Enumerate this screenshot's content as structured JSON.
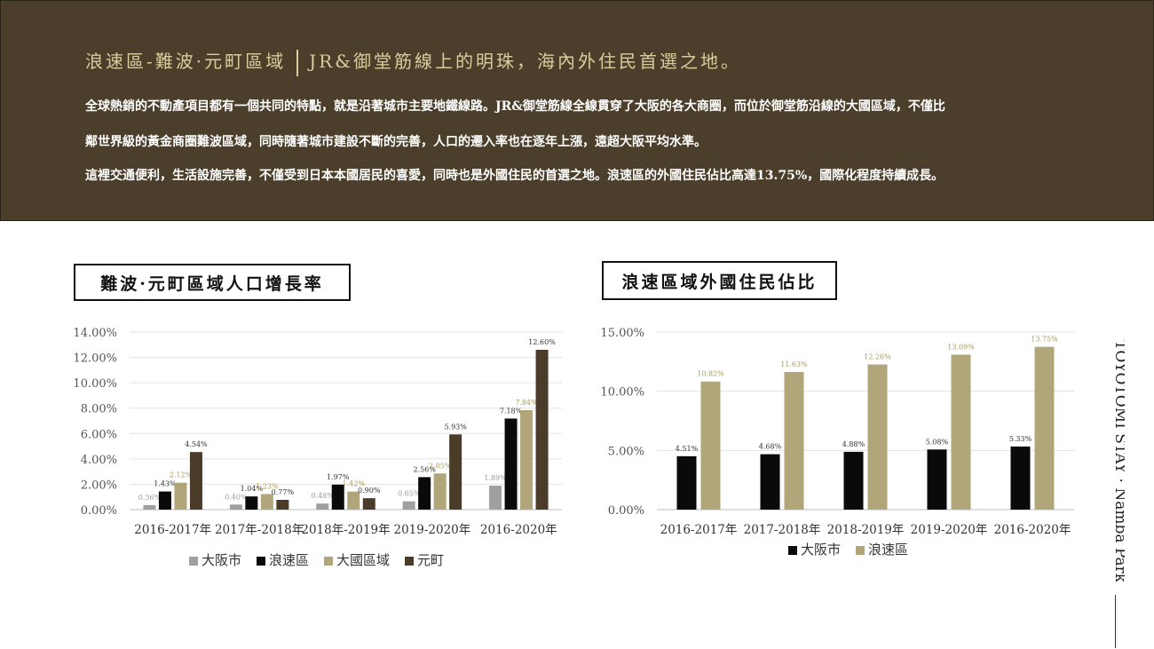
{
  "banner": {
    "heading_left": "浪速區-難波·元町區域",
    "heading_right": "JR&御堂筋線上的明珠，海內外住民首選之地。",
    "para1": "全球熱銷的不動產項目都有一個共同的特點，就是沿著城市主要地鐵線路。JR&御堂筋線全線貫穿了大阪的各大商圈，而位於御堂筋沿線的大國區域，不僅比",
    "para2": "鄰世界級的黃金商圈難波區域，同時隨著城市建設不斷的完善，人口的遷入率也在逐年上漲，遠超大阪平均水準。",
    "para3": "這裡交通便利，生活設施完善，不僅受到日本本國居民的喜愛，同時也是外國住民的首選之地。浪速區的外國住民佔比高達13.75%，國際化程度持續成長。"
  },
  "side_label": "TOYOTOMI STAY · Namba Park",
  "colors": {
    "banner_bg": "#4b3f2b",
    "gold": "#d9cc9c",
    "gray": "#a0a0a0",
    "black": "#0a0a0a",
    "khaki": "#b1a67a",
    "brown": "#4a3c28"
  },
  "chart_data": [
    {
      "type": "bar",
      "title": "難波·元町區域人口增長率",
      "categories": [
        "2016-2017年",
        "2017年-2018年",
        "2018年-2019年",
        "2019-2020年",
        "2016-2020年"
      ],
      "series": [
        {
          "name": "大阪市",
          "values": [
            0.36,
            0.4,
            0.48,
            0.65,
            1.89
          ],
          "color": "#a0a0a0"
        },
        {
          "name": "浪速區",
          "values": [
            1.43,
            1.04,
            1.97,
            2.56,
            7.18
          ],
          "color": "#0a0a0a"
        },
        {
          "name": "大國區域",
          "values": [
            2.12,
            1.23,
            1.42,
            2.85,
            7.84
          ],
          "color": "#b1a67a"
        },
        {
          "name": "元町",
          "values": [
            4.54,
            0.77,
            0.9,
            5.93,
            12.6
          ],
          "color": "#4a3c28"
        }
      ],
      "ylim": [
        0,
        14
      ],
      "yticks": [
        "0.00%",
        "2.00%",
        "4.00%",
        "6.00%",
        "8.00%",
        "10.00%",
        "12.00%",
        "14.00%"
      ],
      "grid": true,
      "legend": "bottom"
    },
    {
      "type": "bar",
      "title": "浪速區域外國住民佔比",
      "categories": [
        "2016-2017年",
        "2017-2018年",
        "2018-2019年",
        "2019-2020年",
        "2016-2020年"
      ],
      "series": [
        {
          "name": "大阪市",
          "values": [
            4.51,
            4.68,
            4.88,
            5.08,
            5.33
          ],
          "color": "#0a0a0a"
        },
        {
          "name": "浪速區",
          "values": [
            10.82,
            11.63,
            12.26,
            13.09,
            13.75
          ],
          "color": "#b1a67a"
        }
      ],
      "ylim": [
        0,
        15
      ],
      "yticks": [
        "0.00%",
        "5.00%",
        "10.00%",
        "15.00%"
      ],
      "grid": true,
      "legend": "bottom"
    }
  ]
}
